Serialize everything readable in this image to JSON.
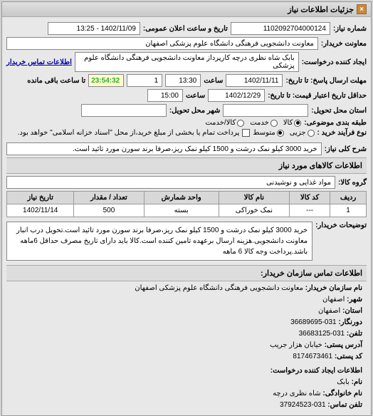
{
  "header": {
    "title": "جزئیات اطلاعات نیاز"
  },
  "fields": {
    "request_number_label": "شماره نیاز:",
    "request_number": "1102092704000124",
    "announce_label": "تاریخ و ساعت اعلان عمومی:",
    "announce_value": "1402/11/09 - 13:25",
    "buyer_label": "معاونت خریدار:",
    "buyer_value": "معاونت دانشجویی فرهنگی دانشگاه علوم پزشکی اصفهان",
    "creator_label": "ایجاد کننده درخواست:",
    "creator_value": "بابک شاه نظری درچه کارپرداز معاونت دانشجویی فرهنگی دانشگاه علوم پزشکی",
    "buyer_contact_label": "اطلاعات تماس خریدار",
    "deadline_send_label": "مهلت ارسال پاسخ: تا تاریخ:",
    "deadline_send_date": "1402/11/11",
    "time_label": "ساعت",
    "deadline_send_time": "13:30",
    "remain_label": "تا ساعت باقی مانده",
    "remain_days": "1",
    "remain_time": "23:54:32",
    "validity_label": "حداقل تاریخ اعتبار قیمت: تا تاریخ:",
    "validity_date": "1402/12/29",
    "validity_time": "15:00",
    "delivery_state_label": "استان محل تحویل:",
    "delivery_city_label": "شهر محل تحویل:",
    "category_label": "طبقه بندی موضوعی:",
    "cat_goods": "کالا",
    "cat_service": "خدمت",
    "cat_goods_service": "کالا/خدمت",
    "purchase_type_label": "نوع فرآیند خرید :",
    "pt_small": "جزیی",
    "pt_medium": "متوسط",
    "pay_note": "پرداخت تمام یا بخشی از مبلغ خرید،از محل \"اسناد خزانه اسلامی\" خواهد بود.",
    "summary_label": "شرح کلی نیاز:",
    "summary_value": "خرید 3000 کیلو نمک درشت و 1500 کیلو نمک ریز،صرفا برند سورن مورد تائید است.",
    "goods_section": "اطلاعات کالاهای مورد نیاز",
    "goods_group_label": "گروه کالا:",
    "goods_group_value": "مواد غذایی و نوشیدنی",
    "desc_label": "توضیحات خریدار:",
    "desc_value": "خرید 3000 کیلو نمک درشت و 1500 کیلو نمک ریز،صرفا برند سورن مورد تائید است.تحویل درب انبار معاونت دانشجویی.هزینه ارسال برعهده تامین کننده است.کالا باید دارای تاریخ مصرف حداقل 6ماهه باشد.پرداخت وجه کالا 6 ماهه"
  },
  "table": {
    "headers": [
      "ردیف",
      "کد کالا",
      "نام کالا",
      "واحد شمارش",
      "تعداد / مقدار",
      "تاریخ نیاز"
    ],
    "rows": [
      [
        "1",
        "---",
        "نمک خوراکی",
        "بسته",
        "500",
        "1402/11/14"
      ]
    ]
  },
  "contact": {
    "section_title": "اطلاعات تماس سازمان خریدار:",
    "org_label": "نام سازمان خریدار:",
    "org_value": "معاونت دانشجویی فرهنگی دانشگاه علوم پزشکی اصفهان",
    "city_label": "شهر:",
    "city_value": "اصفهان",
    "province_label": "استان:",
    "province_value": "اصفهان",
    "fax_label": "دورنگار:",
    "fax_value": "031-36689695",
    "phone_label": "تلفن:",
    "phone_value": "031-36683125",
    "address_label": "آدرس پستی:",
    "address_value": "خیابان هزار جریب",
    "postal_label": "کد پستی:",
    "postal_value": "8174673461",
    "creator_section": "اطلاعات ایجاد کننده درخواست:",
    "name_label": "نام:",
    "name_value": "بابک",
    "lname_label": "نام خانوادگی:",
    "lname_value": "شاه نظری درچه",
    "cphone_label": "تلفن تماس:",
    "cphone_value": "031-37924523"
  }
}
